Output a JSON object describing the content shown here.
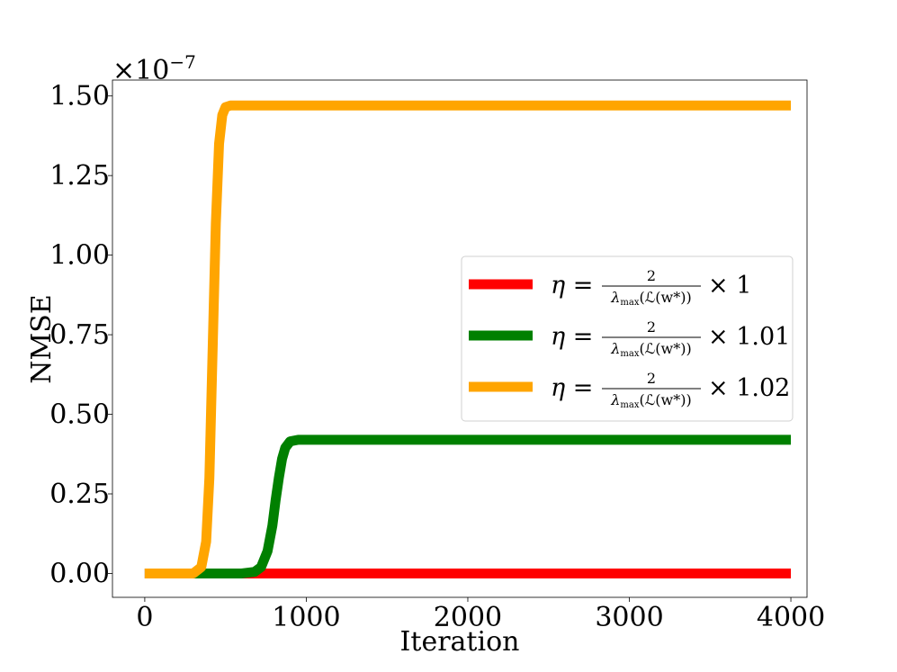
{
  "chart_data": {
    "type": "line",
    "xlabel": "Iteration",
    "ylabel": "NMSE",
    "scale_note": "×10",
    "scale_exp": "−7",
    "xlim": [
      -200,
      4100
    ],
    "ylim": [
      -0.075,
      1.55
    ],
    "xticks": [
      0,
      1000,
      2000,
      3000,
      4000
    ],
    "xtick_labels": [
      "0",
      "1000",
      "2000",
      "3000",
      "4000"
    ],
    "yticks": [
      0.0,
      0.25,
      0.5,
      0.75,
      1.0,
      1.25,
      1.5
    ],
    "ytick_labels": [
      "0.00",
      "0.25",
      "0.50",
      "0.75",
      "1.00",
      "1.25",
      "1.50"
    ],
    "grid": false,
    "legend_position": "center-right",
    "series": [
      {
        "name": "η = 2/λmax(L(w*)) × 1",
        "eta": "η =",
        "numerator": "2",
        "lambda": "λ",
        "lambda_sub": "max",
        "arg": "(ℒ(w*))",
        "factor": "× 1",
        "color": "#ff0000",
        "x": [
          0,
          500,
          1000,
          1500,
          2000,
          2500,
          3000,
          3500,
          4000
        ],
        "y": [
          0,
          0,
          0,
          0,
          0,
          0,
          0,
          0,
          0
        ]
      },
      {
        "name": "η = 2/λmax(L(w*)) × 1.01",
        "eta": "η =",
        "numerator": "2",
        "lambda": "λ",
        "lambda_sub": "max",
        "arg": "(ℒ(w*))",
        "factor": "× 1.01",
        "color": "#008000",
        "x": [
          0,
          600,
          680,
          720,
          760,
          790,
          810,
          830,
          850,
          870,
          900,
          950,
          1000,
          1500,
          2000,
          3000,
          4000
        ],
        "y": [
          0,
          0,
          0.005,
          0.02,
          0.07,
          0.15,
          0.23,
          0.3,
          0.36,
          0.395,
          0.415,
          0.42,
          0.42,
          0.42,
          0.42,
          0.42,
          0.42
        ]
      },
      {
        "name": "η = 2/λmax(L(w*)) × 1.02",
        "eta": "η =",
        "numerator": "2",
        "lambda": "λ",
        "lambda_sub": "max",
        "arg": "(ℒ(w*))",
        "factor": "× 1.02",
        "color": "#ffa500",
        "x": [
          0,
          300,
          350,
          380,
          400,
          420,
          440,
          460,
          480,
          500,
          530,
          560,
          600,
          1000,
          2000,
          3000,
          4000
        ],
        "y": [
          0,
          0,
          0.02,
          0.1,
          0.3,
          0.7,
          1.1,
          1.35,
          1.44,
          1.465,
          1.47,
          1.47,
          1.47,
          1.47,
          1.47,
          1.47,
          1.47
        ]
      }
    ]
  }
}
